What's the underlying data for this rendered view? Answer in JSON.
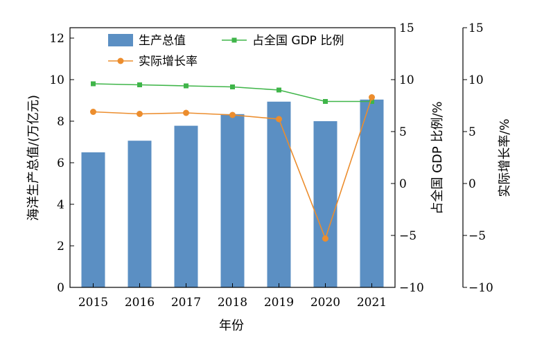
{
  "chart_data": {
    "type": "bar",
    "categories": [
      "2015",
      "2016",
      "2017",
      "2018",
      "2019",
      "2020",
      "2021"
    ],
    "xlabel": "年份",
    "series": [
      {
        "name": "生产总值",
        "type": "bar",
        "axis": "left",
        "color": "#5b8fc3",
        "values": [
          6.5,
          7.06,
          7.78,
          8.34,
          8.94,
          8.0,
          9.04
        ]
      },
      {
        "name": "占全国 GDP 比例",
        "type": "line",
        "axis": "right1",
        "color": "#3fb549",
        "values": [
          9.6,
          9.5,
          9.4,
          9.3,
          9.0,
          7.9,
          7.9
        ]
      },
      {
        "name": "实际增长率",
        "type": "line",
        "axis": "right2",
        "color": "#ec8d2d",
        "values": [
          6.9,
          6.7,
          6.8,
          6.6,
          6.2,
          -5.3,
          8.3
        ]
      }
    ],
    "axes": {
      "left": {
        "label": "海洋生产总值/(万亿元)",
        "ylim": [
          0,
          12.5
        ],
        "ticks": [
          0,
          2,
          4,
          6,
          8,
          10,
          12
        ]
      },
      "right1": {
        "label": "占全国 GDP 比例/%",
        "ylim": [
          -10,
          15
        ],
        "ticks": [
          -10,
          -5,
          0,
          5,
          10,
          15
        ],
        "tick_labels": [
          "−10",
          "−5",
          "0",
          "5",
          "10",
          "15"
        ]
      },
      "right2": {
        "label": "实际增长率/%",
        "ylim": [
          -10,
          15
        ],
        "ticks": [
          -10,
          -5,
          0,
          5,
          10,
          15
        ],
        "tick_labels": [
          "−10",
          "−5",
          "0",
          "5",
          "10",
          "15"
        ]
      }
    },
    "grid": false,
    "legend_position": "top"
  }
}
